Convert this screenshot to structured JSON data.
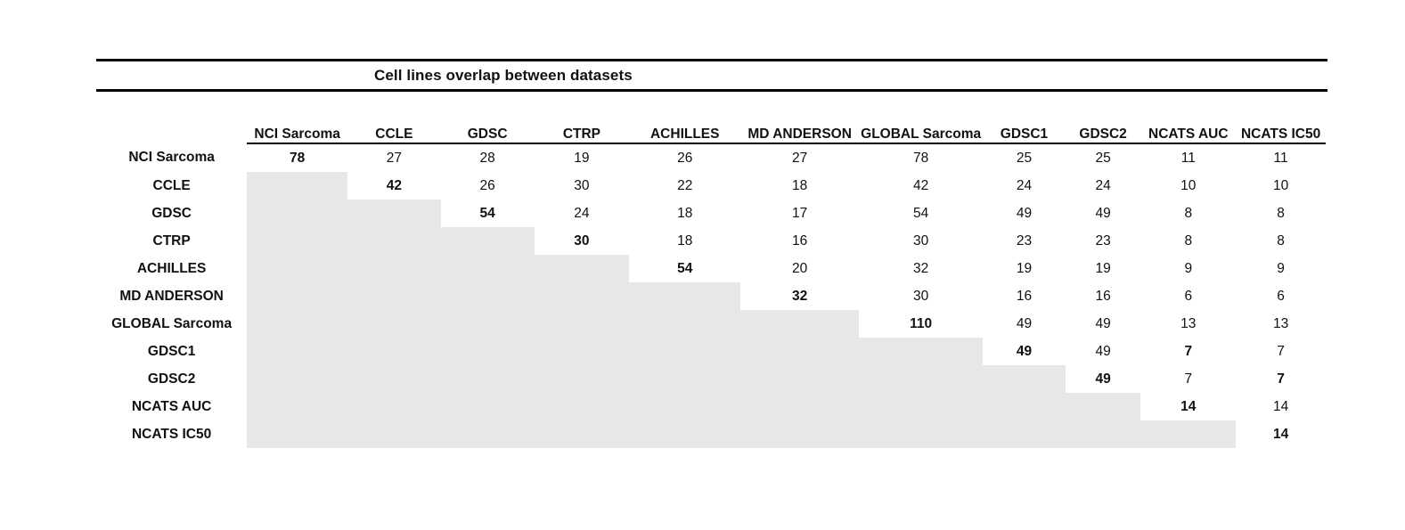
{
  "title": "Cell lines overlap between datasets",
  "chart_data": {
    "type": "table",
    "title": "Cell lines overlap between datasets",
    "columns": [
      "NCI Sarcoma",
      "CCLE",
      "GDSC",
      "CTRP",
      "ACHILLES",
      "MD ANDERSON",
      "GLOBAL Sarcoma",
      "GDSC1",
      "GDSC2",
      "NCATS AUC",
      "NCATS IC50"
    ],
    "rows": [
      "NCI Sarcoma",
      "CCLE",
      "GDSC",
      "CTRP",
      "ACHILLES",
      "MD ANDERSON",
      "GLOBAL Sarcoma",
      "GDSC1",
      "GDSC2",
      "NCATS AUC",
      "NCATS IC50"
    ],
    "values": [
      [
        78,
        27,
        28,
        19,
        26,
        27,
        78,
        25,
        25,
        11,
        11
      ],
      [
        null,
        42,
        26,
        30,
        22,
        18,
        42,
        24,
        24,
        10,
        10
      ],
      [
        null,
        null,
        54,
        24,
        18,
        17,
        54,
        49,
        49,
        8,
        8
      ],
      [
        null,
        null,
        null,
        30,
        18,
        16,
        30,
        23,
        23,
        8,
        8
      ],
      [
        null,
        null,
        null,
        null,
        54,
        20,
        32,
        19,
        19,
        9,
        9
      ],
      [
        null,
        null,
        null,
        null,
        null,
        32,
        30,
        16,
        16,
        6,
        6
      ],
      [
        null,
        null,
        null,
        null,
        null,
        null,
        110,
        49,
        49,
        13,
        13
      ],
      [
        null,
        null,
        null,
        null,
        null,
        null,
        null,
        49,
        49,
        7,
        7
      ],
      [
        null,
        null,
        null,
        null,
        null,
        null,
        null,
        null,
        49,
        7,
        7
      ],
      [
        null,
        null,
        null,
        null,
        null,
        null,
        null,
        null,
        null,
        14,
        14
      ],
      [
        null,
        null,
        null,
        null,
        null,
        null,
        null,
        null,
        null,
        null,
        14
      ]
    ],
    "bold_cells": [
      [
        0,
        0
      ],
      [
        1,
        1
      ],
      [
        2,
        2
      ],
      [
        3,
        3
      ],
      [
        4,
        4
      ],
      [
        5,
        5
      ],
      [
        6,
        6
      ],
      [
        7,
        7
      ],
      [
        8,
        8
      ],
      [
        9,
        9
      ],
      [
        10,
        10
      ],
      [
        7,
        9
      ],
      [
        8,
        10
      ]
    ],
    "layout": {
      "shading": "lower-triangle",
      "shaded_color": "#e7e7e7",
      "grid": "off",
      "header_rule": "double-thick-rule-around-title"
    }
  }
}
